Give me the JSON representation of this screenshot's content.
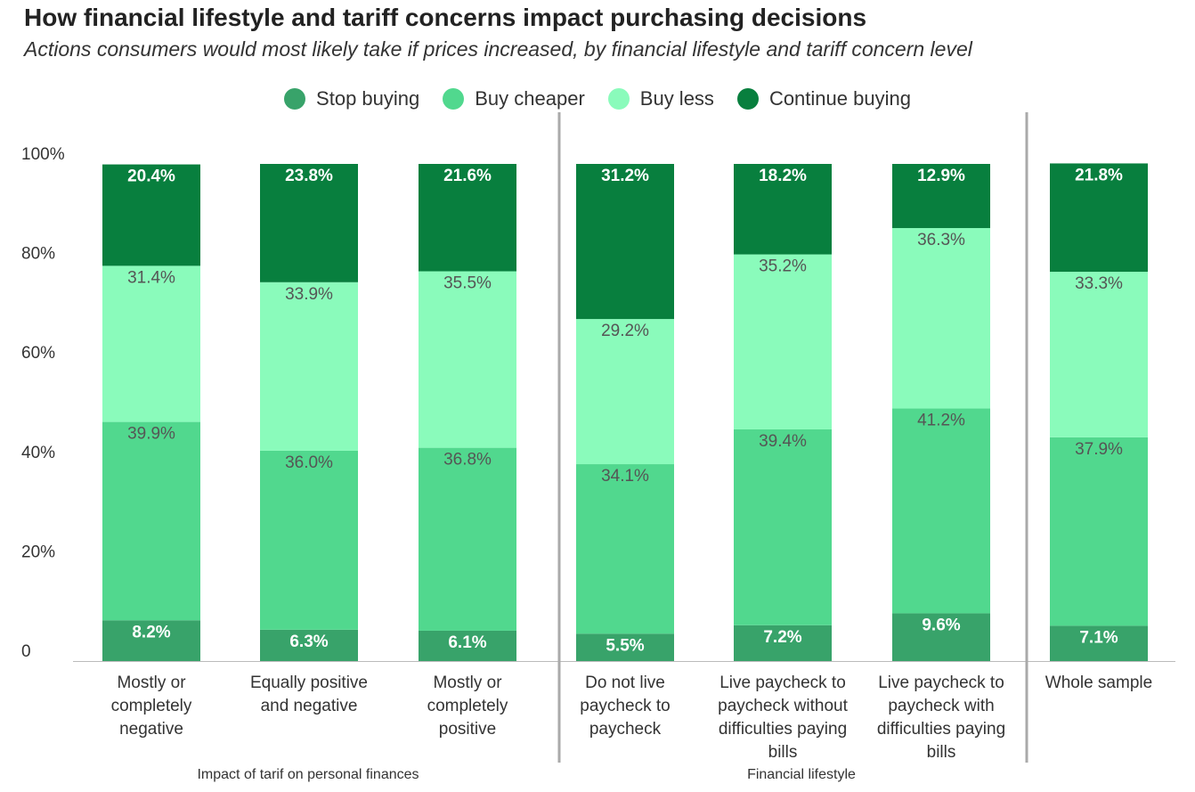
{
  "title": "How financial lifestyle and tariff concerns impact purchasing decisions",
  "subtitle": "Actions consumers would most likely take if prices increased, by financial lifestyle and tariff concern level",
  "colors": {
    "stop_buying": "#38a36a",
    "buy_cheaper": "#51d88e",
    "buy_less": "#8afbbb",
    "continue_buying": "#087f3e",
    "axis": "#aaaaaa",
    "text": "#333333"
  },
  "chart_data": {
    "type": "bar",
    "stacked": true,
    "title": "How financial lifestyle and tariff concerns impact purchasing decisions",
    "subtitle": "Actions consumers would most likely take if prices increased, by financial lifestyle and tariff concern level",
    "categories": [
      "Mostly or completely negative",
      "Equally positive and negative",
      "Mostly or completely positive",
      "Do not live paycheck to paycheck",
      "Live paycheck to paycheck without difficulties paying bills",
      "Live paycheck to paycheck with difficulties paying bills",
      "Whole sample"
    ],
    "category_lines": [
      [
        "Mostly or",
        "completely",
        "negative"
      ],
      [
        "Equally positive",
        "and negative"
      ],
      [
        "Mostly or",
        "completely",
        "positive"
      ],
      [
        "Do not live",
        "paycheck to",
        "paycheck"
      ],
      [
        "Live paycheck to",
        "paycheck without",
        "difficulties paying",
        "bills"
      ],
      [
        "Live paycheck to",
        "paycheck with",
        "difficulties paying",
        "bills"
      ],
      [
        "Whole sample"
      ]
    ],
    "groups": [
      {
        "label": "Impact of tarif on personal finances",
        "categories": [
          0,
          1,
          2
        ]
      },
      {
        "label": "Financial lifestyle",
        "categories": [
          3,
          4,
          5
        ]
      },
      {
        "label": "",
        "categories": [
          6
        ]
      }
    ],
    "series": [
      {
        "key": "stop_buying",
        "name": "Stop buying",
        "values": [
          8.2,
          6.3,
          6.1,
          5.5,
          7.2,
          9.6,
          7.1
        ],
        "labels": [
          "8.2%",
          "6.3%",
          "6.1%",
          "5.5%",
          "7.2%",
          "9.6%",
          "7.1%"
        ]
      },
      {
        "key": "buy_cheaper",
        "name": "Buy cheaper",
        "values": [
          39.9,
          36.0,
          36.8,
          34.1,
          39.4,
          41.2,
          37.9
        ],
        "labels": [
          "39.9%",
          "36.0%",
          "36.8%",
          "34.1%",
          "39.4%",
          "41.2%",
          "37.9%"
        ]
      },
      {
        "key": "buy_less",
        "name": "Buy less",
        "values": [
          31.4,
          33.9,
          35.5,
          29.2,
          35.2,
          36.3,
          33.3
        ],
        "labels": [
          "31.4%",
          "33.9%",
          "35.5%",
          "29.2%",
          "35.2%",
          "36.3%",
          "33.3%"
        ]
      },
      {
        "key": "continue_buying",
        "name": "Continue buying",
        "values": [
          20.4,
          23.8,
          21.6,
          31.2,
          18.2,
          12.9,
          21.8
        ],
        "labels": [
          "20.4%",
          "23.8%",
          "21.6%",
          "31.2%",
          "18.2%",
          "12.9%",
          "21.8%"
        ]
      }
    ],
    "yticks": [
      0,
      20,
      40,
      60,
      80,
      100
    ],
    "ytick_labels": [
      "0",
      "20%",
      "40%",
      "60%",
      "80%",
      "100%"
    ],
    "ylim": [
      0,
      100
    ],
    "xlabel": "",
    "ylabel": "",
    "legend_position": "top-center",
    "grid": false
  }
}
